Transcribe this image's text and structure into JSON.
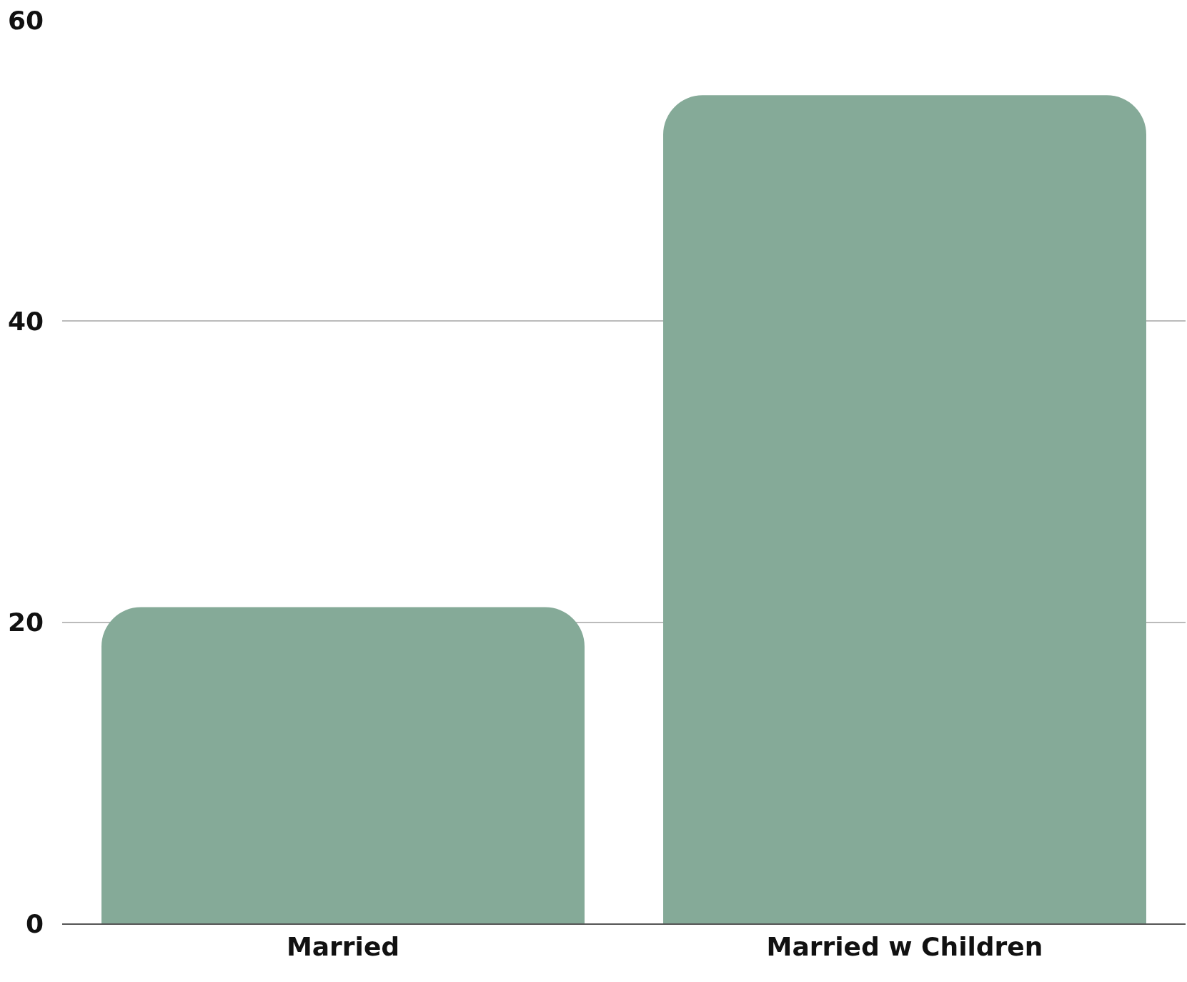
{
  "chart_data": {
    "type": "bar",
    "categories": [
      "Married",
      "Married w Children"
    ],
    "values": [
      21,
      55
    ],
    "color": "#85aa98",
    "ylim": [
      0,
      60
    ],
    "yticks": [
      0,
      20,
      40,
      60
    ],
    "grid": "y"
  }
}
